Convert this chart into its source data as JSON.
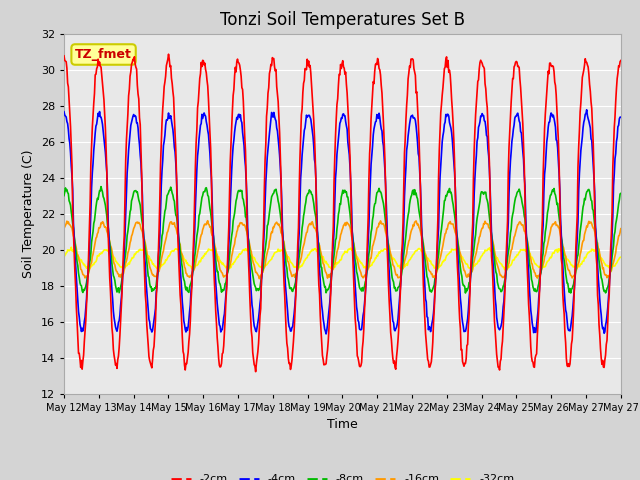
{
  "title": "Tonzi Soil Temperatures Set B",
  "xlabel": "Time",
  "ylabel": "Soil Temperature (C)",
  "ylim": [
    12,
    32
  ],
  "yticks": [
    12,
    14,
    16,
    18,
    20,
    22,
    24,
    26,
    28,
    30,
    32
  ],
  "colors": {
    "-2cm": "#FF0000",
    "-4cm": "#0000FF",
    "-8cm": "#00BB00",
    "-16cm": "#FF9900",
    "-32cm": "#FFFF00"
  },
  "legend_labels": [
    "-2cm",
    "-4cm",
    "-8cm",
    "-16cm",
    "-32cm"
  ],
  "annotation_text": "TZ_fmet",
  "annotation_box_facecolor": "#FFFF99",
  "annotation_text_color": "#CC0000",
  "annotation_edge_color": "#CCCC00",
  "fig_facecolor": "#D4D4D4",
  "plot_facecolor": "#E8E8E8",
  "grid_color": "#FFFFFF",
  "x_tick_labels": [
    "May 12",
    "May 13",
    "May 14",
    "May 15",
    "May 16",
    "May 17",
    "May 18",
    "May 19",
    "May 20",
    "May 21",
    "May 22",
    "May 23",
    "May 24",
    "May 25",
    "May 26",
    "May 27"
  ],
  "n_days": 16,
  "samples_per_day": 48,
  "amp_2": 8.5,
  "amp_4": 6.0,
  "amp_8": 2.8,
  "amp_16": 1.5,
  "amp_32": 0.5,
  "mean_2": 22.0,
  "mean_4": 21.5,
  "mean_8": 20.5,
  "mean_16": 20.0,
  "mean_32": 19.5,
  "phase_shift_4": 0.12,
  "phase_shift_8": 0.35,
  "phase_shift_16": 0.7,
  "phase_shift_32": 1.3
}
